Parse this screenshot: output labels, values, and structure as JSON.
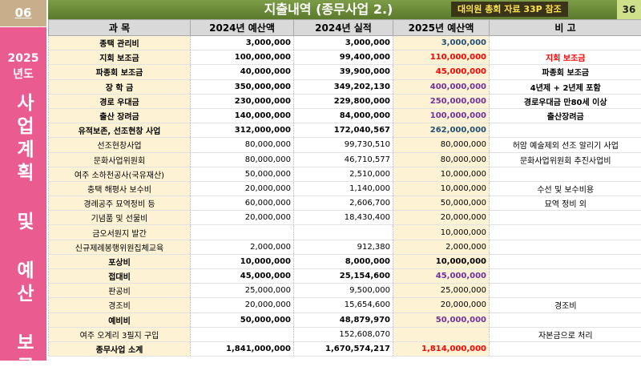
{
  "header": {
    "section": "06",
    "title": "지출내역 (종무사업 2.)",
    "reference": "대의원 총회 자료 33P 참조",
    "page": "36"
  },
  "sidebar": {
    "year": "2025",
    "year_suffix": "년도",
    "title": "사업계획 및 예산 보고"
  },
  "table": {
    "columns": [
      "과 목",
      "2024년 예산액",
      "2024년 실적",
      "2025년 예산액",
      "비      고"
    ],
    "rows": [
      {
        "cells": [
          "종택 관리비",
          "3,000,000",
          "3,000,000",
          "3,000,000",
          null
        ],
        "bold": true,
        "accent": "#1f4e79"
      },
      {
        "cells": [
          "지회 보조금",
          "100,000,000",
          "99,400,000",
          "110,000,000",
          "지회 보조금"
        ],
        "bold": true,
        "accent": "#ff0000",
        "note_color": "#ff0000"
      },
      {
        "cells": [
          "파종회 보조금",
          "40,000,000",
          "39,900,000",
          "45,000,000",
          "파종회 보조금"
        ],
        "bold": true,
        "accent": "#ff0000"
      },
      {
        "cells": [
          "장 학 금",
          "350,000,000",
          "349,202,130",
          "400,000,000",
          "4년제 + 2년제 포함"
        ],
        "bold": true,
        "accent": "#7030a0"
      },
      {
        "cells": [
          "경로 우대금",
          "230,000,000",
          "229,800,000",
          "250,000,000",
          "경로우대금 만80세 이상"
        ],
        "bold": true,
        "accent": "#7030a0"
      },
      {
        "cells": [
          "출산 장려금",
          "140,000,000",
          "84,000,000",
          "100,000,000",
          "출산장려금"
        ],
        "bold": true,
        "accent": "#7030a0"
      },
      {
        "cells": [
          "유적보존, 선조현창 사업",
          "312,000,000",
          "172,040,567",
          "262,000,000",
          null
        ],
        "bold": true,
        "accent": "#1f4e79"
      },
      {
        "cells": [
          "선조현창사업",
          "80,000,000",
          "99,730,510",
          "80,000,000",
          "허암 예술제외 선조 알리기 사업"
        ],
        "bold": false
      },
      {
        "cells": [
          "문화사업위원회",
          "80,000,000",
          "46,710,577",
          "80,000,000",
          "문화사업위원회 추진사업비"
        ],
        "bold": false
      },
      {
        "cells": [
          "여주 소하천공사(국유재산)",
          "50,000,000",
          "2,510,000",
          "10,000,000",
          null
        ],
        "bold": false
      },
      {
        "cells": [
          "충택 해평사 보수비",
          "20,000,000",
          "1,140,000",
          "10,000,000",
          "수선 및 보수비용"
        ],
        "bold": false
      },
      {
        "cells": [
          "경례공주 묘역정비 등",
          "60,000,000",
          "2,606,700",
          "50,000,000",
          "묘역 정비 외"
        ],
        "bold": false
      },
      {
        "cells": [
          "기념품 및 선물비",
          "20,000,000",
          "18,430,400",
          "20,000,000",
          null
        ],
        "bold": false
      },
      {
        "cells": [
          "금오서원지 발간",
          null,
          null,
          "10,000,000",
          null
        ],
        "bold": false
      },
      {
        "cells": [
          "신규제례봉행위원집체교육",
          "2,000,000",
          "912,380",
          "2,000,000",
          null
        ],
        "bold": false
      },
      {
        "cells": [
          "포상비",
          "10,000,000",
          "8,000,000",
          "10,000,000",
          null
        ],
        "bold": true
      },
      {
        "cells": [
          "접대비",
          "45,000,000",
          "25,154,600",
          "45,000,000",
          null
        ],
        "bold": true,
        "accent": "#7030a0"
      },
      {
        "cells": [
          "판공비",
          "25,000,000",
          "9,500,000",
          "25,000,000",
          null
        ],
        "bold": false
      },
      {
        "cells": [
          "경조비",
          "20,000,000",
          "15,654,600",
          "20,000,000",
          "경조비"
        ],
        "bold": false
      },
      {
        "cells": [
          "예비비",
          "50,000,000",
          "48,879,970",
          "50,000,000",
          null
        ],
        "bold": true,
        "accent": "#7030a0"
      },
      {
        "cells": [
          "여주 오계리 3필지 구입",
          null,
          "152,608,070",
          null,
          "자본금으로 처리"
        ],
        "bold": false
      },
      {
        "cells": [
          "종무사업 소계",
          "1,841,000,000",
          "1,670,574,217",
          "1,814,000,000",
          null
        ],
        "bold": true,
        "accent": "#ff0000"
      }
    ]
  }
}
